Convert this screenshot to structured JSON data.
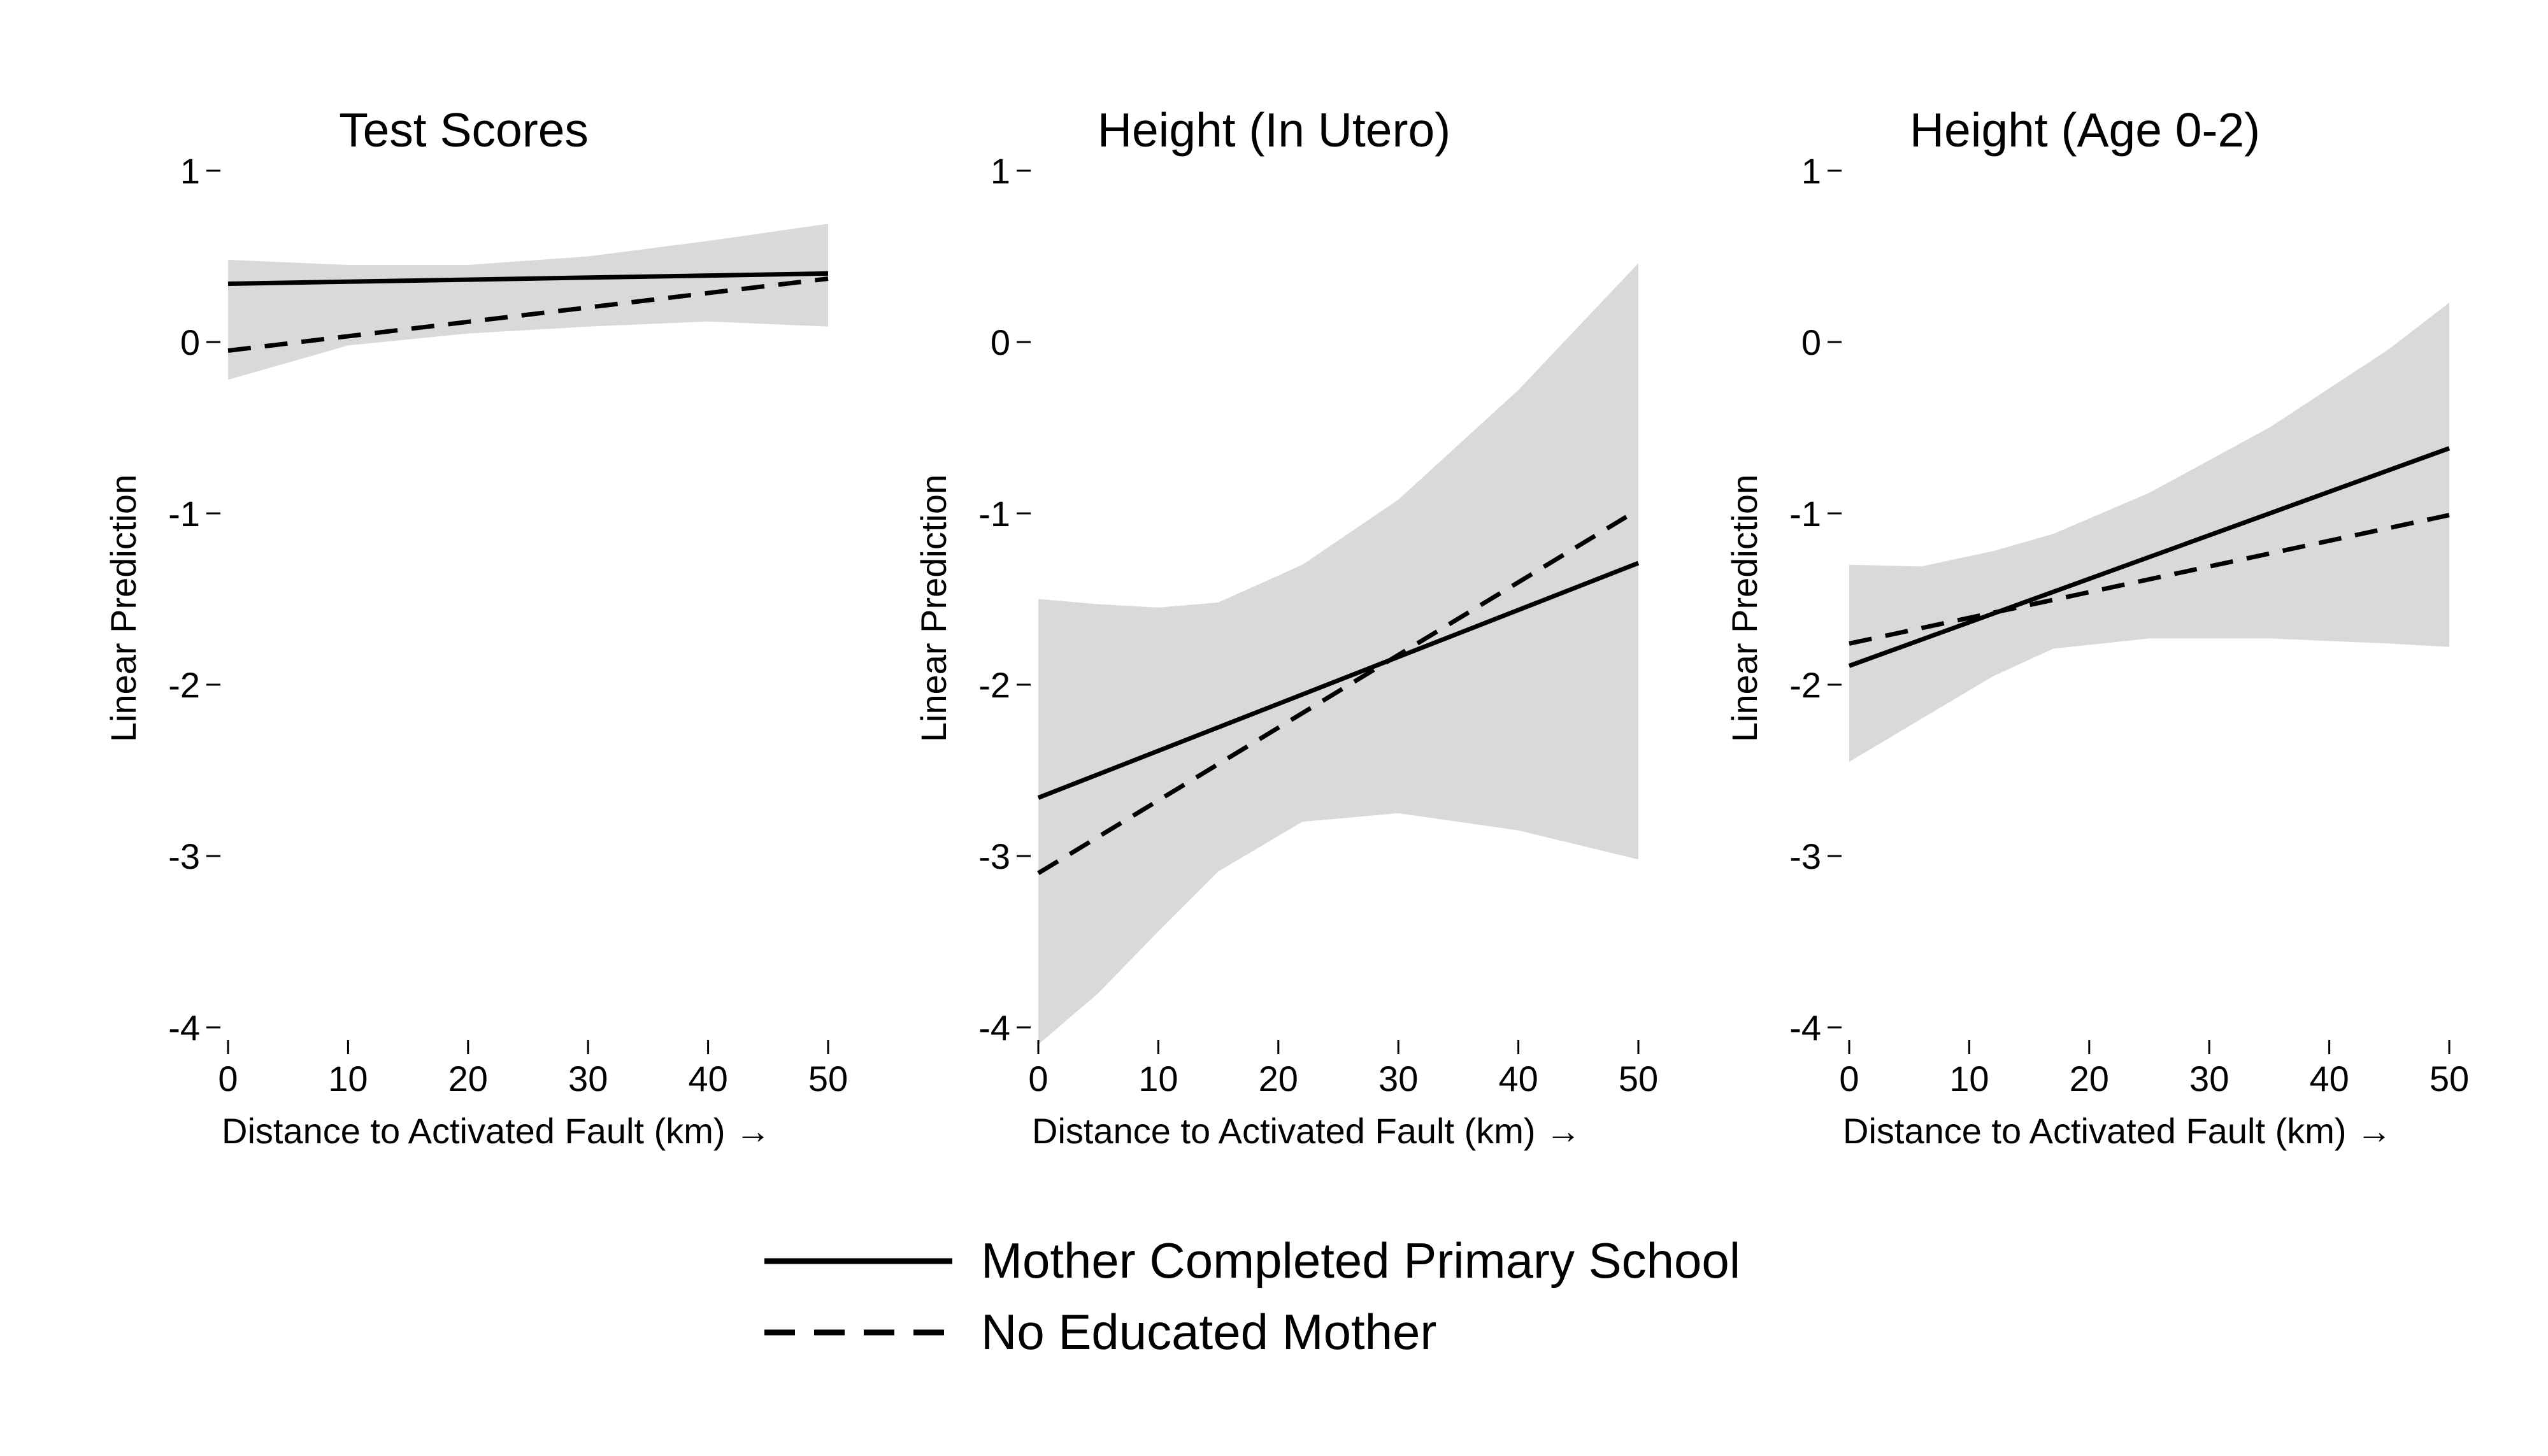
{
  "figure": {
    "background": "#ffffff",
    "band_color": "#d9d9d9",
    "line_color": "#000000"
  },
  "legend": {
    "position": "bottom-center",
    "entries": [
      {
        "label": "Mother Completed Primary School",
        "style": "solid"
      },
      {
        "label": "No Educated Mother",
        "style": "dashed"
      }
    ]
  },
  "chart_data": [
    {
      "type": "line",
      "title": "Test Scores",
      "xlabel": "Distance to Activated Fault (km) →",
      "ylabel": "Linear Prediction",
      "xlim": [
        0,
        50
      ],
      "ylim": [
        -4,
        1
      ],
      "xticks": [
        "0",
        "10",
        "20",
        "30",
        "40",
        "50"
      ],
      "yticks": [
        "1",
        "0",
        "-1",
        "-2",
        "-3",
        "-4"
      ],
      "grid": false,
      "series": [
        {
          "name": "Mother Completed Primary School",
          "style": "solid",
          "x": [
            0,
            50
          ],
          "y": [
            0.34,
            0.4
          ]
        },
        {
          "name": "No Educated Mother",
          "style": "dashed",
          "x": [
            0,
            50
          ],
          "y": [
            -0.05,
            0.37
          ]
        }
      ],
      "confidence_band": {
        "x": [
          0,
          10,
          20,
          30,
          40,
          50
        ],
        "upper": [
          0.48,
          0.45,
          0.45,
          0.5,
          0.59,
          0.69
        ],
        "lower": [
          -0.22,
          -0.02,
          0.05,
          0.09,
          0.12,
          0.09
        ]
      }
    },
    {
      "type": "line",
      "title": "Height (In Utero)",
      "xlabel": "Distance to Activated Fault (km) →",
      "ylabel": "Linear Prediction",
      "xlim": [
        0,
        50
      ],
      "ylim": [
        -4,
        1
      ],
      "xticks": [
        "0",
        "10",
        "20",
        "30",
        "40",
        "50"
      ],
      "yticks": [
        "1",
        "0",
        "-1",
        "-2",
        "-3",
        "-4"
      ],
      "grid": false,
      "series": [
        {
          "name": "Mother Completed Primary School",
          "style": "solid",
          "x": [
            0,
            50
          ],
          "y": [
            -2.66,
            -1.29
          ]
        },
        {
          "name": "No Educated Mother",
          "style": "dashed",
          "x": [
            0,
            49
          ],
          "y": [
            -3.1,
            -1.02
          ]
        }
      ],
      "confidence_band": {
        "x": [
          0,
          5,
          10,
          15,
          22,
          30,
          40,
          50
        ],
        "upper": [
          -1.5,
          -1.53,
          -1.55,
          -1.52,
          -1.3,
          -0.92,
          -0.28,
          0.46
        ],
        "lower": [
          -4.1,
          -3.8,
          -3.44,
          -3.09,
          -2.8,
          -2.75,
          -2.85,
          -3.02
        ]
      }
    },
    {
      "type": "line",
      "title": "Height (Age 0-2)",
      "xlabel": "Distance to Activated Fault (km) →",
      "ylabel": "Linear Prediction",
      "xlim": [
        0,
        50
      ],
      "ylim": [
        -4,
        1
      ],
      "xticks": [
        "0",
        "10",
        "20",
        "30",
        "40",
        "50"
      ],
      "yticks": [
        "1",
        "0",
        "-1",
        "-2",
        "-3",
        "-4"
      ],
      "grid": false,
      "series": [
        {
          "name": "Mother Completed Primary School",
          "style": "solid",
          "x": [
            0,
            50
          ],
          "y": [
            -1.89,
            -0.62
          ]
        },
        {
          "name": "No Educated Mother",
          "style": "dashed",
          "x": [
            0,
            50
          ],
          "y": [
            -1.76,
            -1.01
          ]
        }
      ],
      "confidence_band": {
        "x": [
          0,
          6,
          12,
          17,
          25,
          35,
          45,
          50
        ],
        "upper": [
          -1.3,
          -1.31,
          -1.22,
          -1.12,
          -0.88,
          -0.5,
          -0.04,
          0.23
        ],
        "lower": [
          -2.45,
          -2.2,
          -1.95,
          -1.79,
          -1.73,
          -1.73,
          -1.76,
          -1.78
        ]
      }
    }
  ]
}
